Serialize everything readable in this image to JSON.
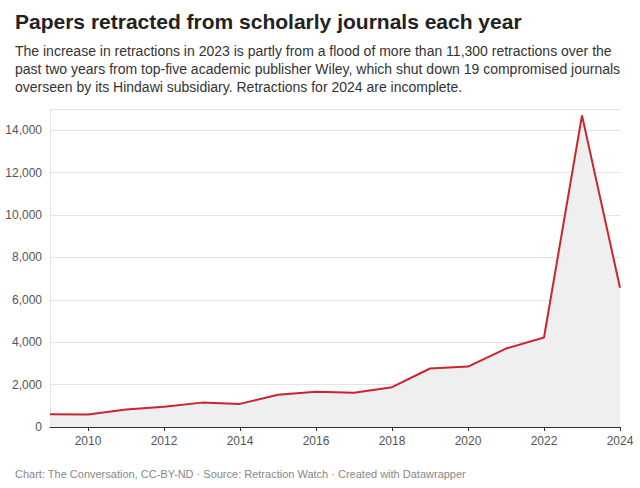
{
  "chart_data": {
    "type": "line",
    "title": "Papers retracted from scholarly journals each year",
    "subtitle": "The increase in retractions in 2023 is partly from a flood of more than 11,300 retractions over the past two years from top-five academic publisher Wiley, which shut down 19 compromised journals overseen by its Hindawi subsidiary. Retractions for 2024 are incomplete.",
    "footer": "Chart: The Conversation, CC-BY-ND · Source: Retraction Watch · Created with Datawrapper",
    "x": [
      2009,
      2010,
      2011,
      2012,
      2013,
      2014,
      2015,
      2016,
      2017,
      2018,
      2019,
      2020,
      2021,
      2022,
      2023,
      2024
    ],
    "values": [
      600,
      590,
      830,
      960,
      1150,
      1090,
      1520,
      1660,
      1620,
      1880,
      2760,
      2850,
      3700,
      4220,
      14700,
      6570
    ],
    "color": "#c8252c",
    "xlim": [
      2009,
      2024
    ],
    "xticks": [
      2010,
      2012,
      2014,
      2016,
      2018,
      2020,
      2022,
      2024
    ],
    "ylim": [
      0,
      15000
    ],
    "yticks": [
      0,
      {
        "value": 2000,
        "label": "2,000"
      },
      {
        "value": 4000,
        "label": "4,000"
      },
      {
        "value": 6000,
        "label": "6,000"
      },
      {
        "value": 8000,
        "label": "8,000"
      },
      {
        "value": 10000,
        "label": "10,000"
      },
      {
        "value": 12000,
        "label": "12,000"
      },
      {
        "value": 14000,
        "label": "14,000"
      }
    ],
    "grid": true
  }
}
